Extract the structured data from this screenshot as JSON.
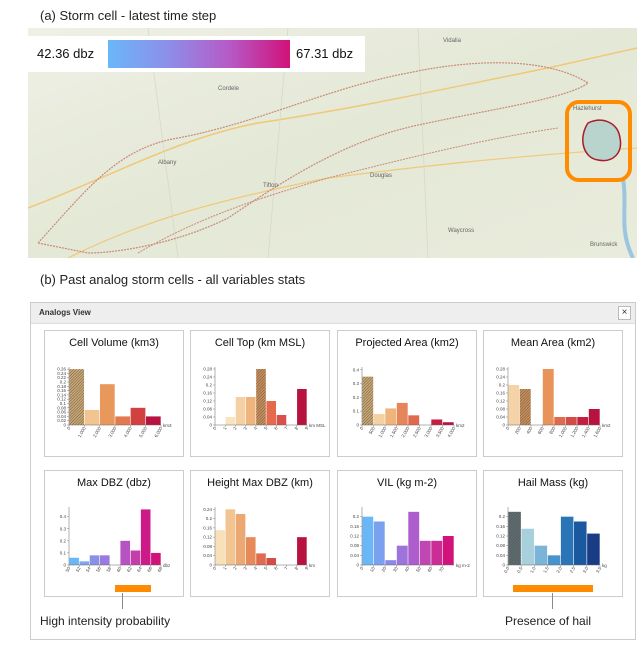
{
  "captions": {
    "a": "(a) Storm cell - latest time step",
    "b": "(b) Past analog storm cells - all variables stats"
  },
  "map": {
    "legend_min": "42.36 dbz",
    "legend_max": "67.31 dbz",
    "places": [
      "Vidalia",
      "Cordele",
      "Albany",
      "Tifton",
      "Douglas",
      "Hazlehurst",
      "Waycross",
      "Brunswick"
    ]
  },
  "panel": {
    "title": "Analogs View",
    "close": "×"
  },
  "annotations": [
    "High intensity probability",
    "Presence of hail"
  ],
  "chart_data": [
    {
      "type": "histogram",
      "title": "Cell Volume (km3)",
      "x_label": "km3",
      "bins": [
        0,
        1000,
        2000,
        3000,
        4000,
        5000,
        6000
      ],
      "values": [
        0.26,
        0.07,
        0.19,
        0.04,
        0.08,
        0.04
      ],
      "colors": [
        "#c9a878",
        "#f2c48f",
        "#e9985c",
        "#e27a50",
        "#d1413f",
        "#b8123f"
      ],
      "hatched_bin": 0,
      "xlim": [
        0,
        6000
      ],
      "xticks": [
        0,
        {
          "value": 1000,
          "label": "1,000"
        },
        {
          "value": 2000,
          "label": "2,000"
        },
        {
          "value": 3000,
          "label": "3,000"
        },
        {
          "value": 4000,
          "label": "4,000"
        },
        {
          "value": 5000,
          "label": "5,000"
        },
        {
          "value": 6000,
          "label": "6,000"
        }
      ],
      "ylim": [
        0,
        0.27
      ],
      "yticks": [
        0,
        0.02,
        0.04,
        0.06,
        0.08,
        0.1,
        0.12,
        0.14,
        0.16,
        0.18,
        0.2,
        0.22,
        0.24,
        0.26
      ]
    },
    {
      "type": "histogram",
      "title": "Cell Top (km MSL)",
      "x_label": "km MSL",
      "bins": [
        1,
        2,
        3,
        4,
        5,
        6,
        7,
        8,
        9
      ],
      "values": [
        0.04,
        0.14,
        0.14,
        0.28,
        0.12,
        0.05,
        0,
        0.18
      ],
      "colors": [
        "#f8e4c0",
        "#f4d0a2",
        "#efb47c",
        "#c9905e",
        "#e46a4e",
        "#d9504a",
        "#c8303e",
        "#b8123f"
      ],
      "hatched_bin": 3,
      "xlim": [
        0,
        9
      ],
      "xticks": [
        0,
        1,
        2,
        3,
        4,
        5,
        6,
        7,
        8,
        9
      ],
      "ylim": [
        0,
        0.29
      ],
      "yticks": [
        0,
        0.04,
        0.08,
        0.12,
        0.16,
        0.2,
        0.24,
        0.28
      ]
    },
    {
      "type": "histogram",
      "title": "Projected Area (km2)",
      "x_label": "km2",
      "bins": [
        0,
        500,
        1000,
        1500,
        2000,
        2500,
        3000,
        3500,
        4000
      ],
      "values": [
        0.35,
        0.08,
        0.12,
        0.16,
        0.07,
        0,
        0.04,
        0.02
      ],
      "colors": [
        "#c9a878",
        "#f4d0a2",
        "#efb47c",
        "#e6855a",
        "#e06a4e",
        "#d44a44",
        "#c2203e",
        "#b8123f"
      ],
      "hatched_bin": 0,
      "xlim": [
        0,
        4000
      ],
      "xticks": [
        0,
        500,
        {
          "value": 1000,
          "label": "1,000"
        },
        {
          "value": 1500,
          "label": "1,500"
        },
        {
          "value": 2000,
          "label": "2,000"
        },
        {
          "value": 2500,
          "label": "2,500"
        },
        {
          "value": 3000,
          "label": "3,000"
        },
        {
          "value": 3500,
          "label": "3,500"
        },
        {
          "value": 4000,
          "label": "4,000"
        }
      ],
      "ylim": [
        0,
        0.42
      ],
      "yticks": [
        0,
        0.1,
        0.2,
        0.3,
        0.4
      ]
    },
    {
      "type": "histogram",
      "title": "Mean Area (km2)",
      "x_label": "km2",
      "bins": [
        0,
        200,
        400,
        600,
        800,
        1000,
        1200,
        1400,
        1600
      ],
      "values": [
        0.2,
        0.18,
        0,
        0.28,
        0.04,
        0.04,
        0.04,
        0.08
      ],
      "colors": [
        "#f4d3a6",
        "#c9905e",
        "#efb47c",
        "#e8935a",
        "#e06a4e",
        "#d44a44",
        "#c2203e",
        "#b8123f"
      ],
      "hatched_bin": 1,
      "xlim": [
        0,
        1600
      ],
      "xticks": [
        0,
        200,
        400,
        600,
        800,
        {
          "value": 1000,
          "label": "1,000"
        },
        {
          "value": 1200,
          "label": "1,200"
        },
        {
          "value": 1400,
          "label": "1,400"
        },
        {
          "value": 1600,
          "label": "1,600"
        }
      ],
      "ylim": [
        0,
        0.29
      ],
      "yticks": [
        0,
        0.04,
        0.08,
        0.12,
        0.16,
        0.2,
        0.24,
        0.28
      ]
    },
    {
      "type": "histogram",
      "title": "Max DBZ (dbz)",
      "x_label": "dbz",
      "bins": [
        50,
        52,
        54,
        56,
        58,
        60,
        62,
        64,
        66,
        68
      ],
      "values": [
        0.06,
        0.03,
        0.08,
        0.08,
        0,
        0.2,
        0.12,
        0.46,
        0.1
      ],
      "colors": [
        "#6ab7f8",
        "#7aa6f2",
        "#8a90e8",
        "#9a7ade",
        "#a866d0",
        "#b652c2",
        "#c33eab",
        "#cc1a88",
        "#d0127a"
      ],
      "xlim": [
        50,
        68
      ],
      "xticks": [
        50,
        52,
        54,
        56,
        58,
        60,
        62,
        64,
        66,
        68
      ],
      "ylim": [
        0,
        0.48
      ],
      "yticks": [
        0,
        0.1,
        0.2,
        0.3,
        0.4
      ]
    },
    {
      "type": "histogram",
      "title": "Height Max DBZ (km)",
      "x_label": "km",
      "bins": [
        0,
        1,
        2,
        3,
        4,
        5,
        6,
        7,
        8,
        9
      ],
      "values": [
        0.15,
        0.24,
        0.22,
        0.12,
        0.05,
        0.03,
        0,
        0,
        0.12
      ],
      "colors": [
        "#f8e0b8",
        "#f2c490",
        "#eca872",
        "#e68a5a",
        "#df6c4c",
        "#d44c44",
        "#c8303e",
        "#bc1c3e",
        "#b8123f"
      ],
      "xlim": [
        0,
        9
      ],
      "xticks": [
        0,
        1,
        2,
        3,
        4,
        5,
        6,
        7,
        8,
        9
      ],
      "ylim": [
        0,
        0.25
      ],
      "yticks": [
        0,
        0.04,
        0.08,
        0.12,
        0.16,
        0.2,
        0.24
      ]
    },
    {
      "type": "histogram",
      "title": "VIL (kg m-2)",
      "x_label": "kg m-2",
      "bins": [
        0,
        10,
        20,
        30,
        40,
        50,
        60,
        70,
        80
      ],
      "values": [
        0.2,
        0.18,
        0.02,
        0.08,
        0.22,
        0.1,
        0.1,
        0.12
      ],
      "colors": [
        "#6ab7f8",
        "#7aa0f0",
        "#8a8ae6",
        "#9c74da",
        "#ae5ecc",
        "#c046b4",
        "#cc2c96",
        "#d0127a"
      ],
      "xlim": [
        0,
        80
      ],
      "xticks": [
        0,
        10,
        20,
        30,
        40,
        50,
        60,
        70
      ],
      "ylim": [
        0,
        0.24
      ],
      "yticks": [
        0,
        0.04,
        0.08,
        0.12,
        0.16,
        0.2
      ]
    },
    {
      "type": "histogram",
      "title": "Hail Mass (kg)",
      "x_label": "kg",
      "bins": [
        0,
        0.5,
        1,
        1.5,
        2,
        2.5,
        3,
        3.5
      ],
      "values": [
        0.22,
        0.15,
        0.08,
        0.04,
        0.2,
        0.18,
        0.13
      ],
      "colors": [
        "#5c6e78",
        "#a8d0dc",
        "#7cb4d8",
        "#4a94cc",
        "#2a74b8",
        "#1a58a0",
        "#1a3c84"
      ],
      "hatched_bin": 0,
      "xlim": [
        0,
        3.5
      ],
      "xticks": [
        {
          "value": 0,
          "label": "0.0"
        },
        0.5,
        {
          "value": 1,
          "label": "1.0"
        },
        1.5,
        {
          "value": 2,
          "label": "2.0"
        },
        2.5,
        {
          "value": 3,
          "label": "3.0"
        },
        3.5
      ],
      "ylim": [
        0,
        0.24
      ],
      "yticks": [
        0,
        0.04,
        0.08,
        0.12,
        0.16,
        0.2
      ]
    }
  ]
}
